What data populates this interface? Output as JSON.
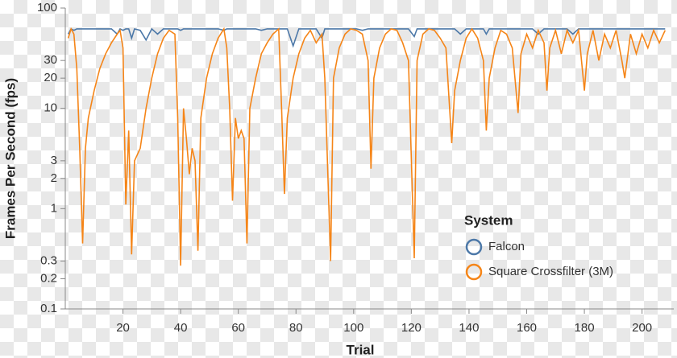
{
  "chart_data": {
    "type": "line",
    "x_label": "Trial",
    "y_label": "Frames Per Second (fps)",
    "legend_title": "System",
    "legend_position": "right",
    "yscale": "log",
    "xlim": [
      0,
      211
    ],
    "xticks": [
      20,
      40,
      60,
      80,
      100,
      120,
      140,
      160,
      180,
      200
    ],
    "ylim": [
      0.1,
      100
    ],
    "yticks": [
      0.1,
      0.2,
      0.3,
      1,
      2,
      3,
      10,
      20,
      30,
      100
    ],
    "x": [
      1,
      2,
      3,
      4,
      5,
      6,
      7,
      8,
      10,
      12,
      14,
      16,
      18,
      19,
      20,
      21,
      22,
      23,
      24,
      26,
      28,
      30,
      32,
      34,
      36,
      38,
      39,
      40,
      41,
      42,
      43,
      44,
      45,
      46,
      47,
      49,
      51,
      53,
      55,
      56,
      57,
      58,
      59,
      60,
      61,
      62,
      63,
      64,
      66,
      68,
      70,
      72,
      74,
      75,
      76,
      77,
      79,
      81,
      83,
      85,
      87,
      89,
      90,
      92,
      93,
      95,
      97,
      99,
      101,
      103,
      105,
      106,
      107,
      109,
      111,
      113,
      115,
      117,
      119,
      121,
      122,
      124,
      126,
      128,
      130,
      132,
      134,
      135,
      137,
      139,
      141,
      143,
      145,
      146,
      147,
      149,
      151,
      153,
      155,
      157,
      158,
      160,
      162,
      164,
      166,
      167,
      168,
      170,
      172,
      174,
      176,
      178,
      180,
      181,
      183,
      185,
      187,
      189,
      191,
      193,
      194,
      196,
      198,
      200,
      202,
      204,
      206,
      208
    ],
    "series": [
      {
        "name": "Falcon",
        "color": "#4c78a8",
        "values": [
          55,
          62,
          60,
          62,
          62,
          62,
          62,
          62,
          62,
          62,
          62,
          62,
          55,
          62,
          60,
          62,
          62,
          50,
          62,
          60,
          48,
          62,
          55,
          62,
          62,
          62,
          62,
          60,
          62,
          62,
          62,
          62,
          62,
          62,
          62,
          62,
          62,
          62,
          60,
          62,
          62,
          62,
          62,
          62,
          62,
          62,
          62,
          62,
          62,
          60,
          62,
          62,
          62,
          62,
          62,
          62,
          42,
          62,
          62,
          62,
          62,
          50,
          62,
          62,
          62,
          62,
          62,
          62,
          62,
          60,
          62,
          62,
          62,
          62,
          62,
          62,
          62,
          62,
          62,
          52,
          62,
          62,
          62,
          62,
          62,
          62,
          62,
          62,
          55,
          62,
          62,
          62,
          62,
          55,
          62,
          62,
          62,
          62,
          62,
          62,
          62,
          62,
          62,
          55,
          62,
          62,
          62,
          62,
          62,
          62,
          55,
          62,
          62,
          62,
          62,
          62,
          62,
          62,
          62,
          62,
          62,
          62,
          62,
          62,
          62,
          62,
          62,
          62
        ]
      },
      {
        "name": "Square Crossfilter (3M)",
        "color": "#f58518",
        "values": [
          50,
          62,
          55,
          25,
          4,
          0.45,
          4,
          8,
          15,
          25,
          35,
          45,
          55,
          60,
          40,
          1.1,
          6,
          0.35,
          3,
          4,
          10,
          20,
          35,
          50,
          60,
          55,
          8,
          0.27,
          10,
          5,
          2.2,
          4,
          3,
          0.38,
          8,
          20,
          35,
          50,
          62,
          40,
          10,
          1.2,
          8,
          5,
          6,
          5,
          0.45,
          10,
          20,
          35,
          45,
          55,
          62,
          10,
          1.4,
          8,
          20,
          35,
          50,
          60,
          45,
          55,
          20,
          0.3,
          20,
          40,
          55,
          62,
          60,
          55,
          30,
          2.5,
          20,
          40,
          55,
          62,
          60,
          45,
          30,
          0.32,
          30,
          55,
          62,
          60,
          50,
          40,
          4.5,
          15,
          30,
          50,
          62,
          50,
          30,
          6,
          20,
          40,
          60,
          55,
          40,
          9,
          35,
          55,
          40,
          60,
          45,
          15,
          40,
          60,
          35,
          60,
          45,
          60,
          15,
          35,
          60,
          30,
          55,
          40,
          60,
          30,
          20,
          55,
          35,
          55,
          40,
          60,
          45,
          60
        ]
      }
    ]
  }
}
